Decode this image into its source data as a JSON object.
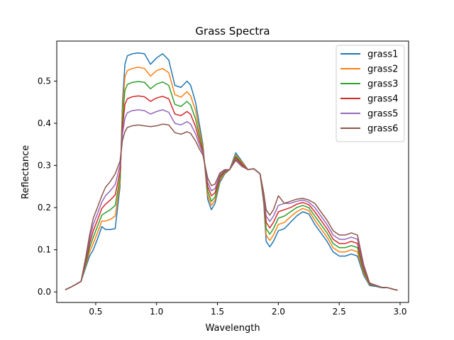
{
  "chart_data": {
    "type": "line",
    "title": "Grass Spectra",
    "xlabel": "Wavelength",
    "ylabel": "Reflectance",
    "xlim": [
      0.18,
      3.07
    ],
    "ylim": [
      -0.025,
      0.595
    ],
    "xticks": [
      0.5,
      1.0,
      1.5,
      2.0,
      2.5,
      3.0
    ],
    "xtick_labels": [
      "0.5",
      "1.0",
      "1.5",
      "2.0",
      "2.5",
      "3.0"
    ],
    "yticks": [
      0.0,
      0.1,
      0.2,
      0.3,
      0.4,
      0.5
    ],
    "ytick_labels": [
      "0.0",
      "0.1",
      "0.2",
      "0.3",
      "0.4",
      "0.5"
    ],
    "grid": false,
    "legend_position": "upper right",
    "series": [
      {
        "name": "grass1",
        "color": "#1f77b4",
        "x": [
          0.25,
          0.3,
          0.35,
          0.38,
          0.42,
          0.45,
          0.48,
          0.52,
          0.55,
          0.58,
          0.62,
          0.66,
          0.7,
          0.72,
          0.74,
          0.76,
          0.8,
          0.85,
          0.9,
          0.95,
          1.0,
          1.05,
          1.1,
          1.15,
          1.2,
          1.25,
          1.28,
          1.32,
          1.35,
          1.38,
          1.42,
          1.45,
          1.48,
          1.52,
          1.56,
          1.6,
          1.65,
          1.7,
          1.75,
          1.8,
          1.85,
          1.88,
          1.9,
          1.93,
          1.96,
          2.0,
          2.05,
          2.1,
          2.15,
          2.2,
          2.25,
          2.3,
          2.35,
          2.4,
          2.45,
          2.5,
          2.55,
          2.6,
          2.65,
          2.7,
          2.75,
          2.8,
          2.85,
          2.9,
          2.95,
          2.98
        ],
        "y": [
          0.005,
          0.012,
          0.02,
          0.025,
          0.06,
          0.085,
          0.1,
          0.13,
          0.155,
          0.148,
          0.148,
          0.15,
          0.25,
          0.45,
          0.54,
          0.56,
          0.565,
          0.567,
          0.565,
          0.54,
          0.555,
          0.565,
          0.55,
          0.49,
          0.485,
          0.5,
          0.49,
          0.45,
          0.4,
          0.35,
          0.22,
          0.195,
          0.21,
          0.26,
          0.28,
          0.29,
          0.33,
          0.31,
          0.29,
          0.292,
          0.28,
          0.21,
          0.12,
          0.107,
          0.12,
          0.145,
          0.15,
          0.165,
          0.18,
          0.19,
          0.185,
          0.16,
          0.14,
          0.12,
          0.095,
          0.085,
          0.085,
          0.09,
          0.085,
          0.04,
          0.015,
          0.013,
          0.01,
          0.01,
          0.006,
          0.004
        ]
      },
      {
        "name": "grass2",
        "color": "#ff7f0e",
        "x": [
          0.25,
          0.3,
          0.35,
          0.38,
          0.42,
          0.45,
          0.48,
          0.52,
          0.55,
          0.58,
          0.62,
          0.66,
          0.7,
          0.72,
          0.74,
          0.76,
          0.8,
          0.85,
          0.9,
          0.95,
          1.0,
          1.05,
          1.1,
          1.15,
          1.2,
          1.25,
          1.28,
          1.32,
          1.35,
          1.38,
          1.42,
          1.45,
          1.48,
          1.52,
          1.56,
          1.6,
          1.65,
          1.7,
          1.75,
          1.8,
          1.85,
          1.88,
          1.9,
          1.93,
          1.96,
          2.0,
          2.05,
          2.1,
          2.15,
          2.2,
          2.25,
          2.3,
          2.35,
          2.4,
          2.45,
          2.5,
          2.55,
          2.6,
          2.65,
          2.7,
          2.75,
          2.8,
          2.85,
          2.9,
          2.95,
          2.98
        ],
        "y": [
          0.005,
          0.012,
          0.02,
          0.025,
          0.065,
          0.095,
          0.115,
          0.145,
          0.168,
          0.168,
          0.172,
          0.18,
          0.26,
          0.43,
          0.51,
          0.525,
          0.53,
          0.533,
          0.53,
          0.512,
          0.525,
          0.53,
          0.52,
          0.468,
          0.462,
          0.475,
          0.465,
          0.43,
          0.385,
          0.345,
          0.23,
          0.205,
          0.218,
          0.265,
          0.282,
          0.29,
          0.325,
          0.308,
          0.29,
          0.292,
          0.28,
          0.215,
          0.135,
          0.122,
          0.135,
          0.16,
          0.165,
          0.178,
          0.19,
          0.198,
          0.193,
          0.17,
          0.15,
          0.13,
          0.105,
          0.095,
          0.095,
          0.1,
          0.095,
          0.045,
          0.017,
          0.014,
          0.011,
          0.01,
          0.006,
          0.004
        ]
      },
      {
        "name": "grass3",
        "color": "#2ca02c",
        "x": [
          0.25,
          0.3,
          0.35,
          0.38,
          0.42,
          0.45,
          0.48,
          0.52,
          0.55,
          0.58,
          0.62,
          0.66,
          0.7,
          0.72,
          0.74,
          0.76,
          0.8,
          0.85,
          0.9,
          0.95,
          1.0,
          1.05,
          1.1,
          1.15,
          1.2,
          1.25,
          1.28,
          1.32,
          1.35,
          1.38,
          1.42,
          1.45,
          1.48,
          1.52,
          1.56,
          1.6,
          1.65,
          1.7,
          1.75,
          1.8,
          1.85,
          1.88,
          1.9,
          1.93,
          1.96,
          2.0,
          2.05,
          2.1,
          2.15,
          2.2,
          2.25,
          2.3,
          2.35,
          2.4,
          2.45,
          2.5,
          2.55,
          2.6,
          2.65,
          2.7,
          2.75,
          2.8,
          2.85,
          2.9,
          2.95,
          2.98
        ],
        "y": [
          0.005,
          0.012,
          0.02,
          0.025,
          0.07,
          0.105,
          0.13,
          0.16,
          0.182,
          0.188,
          0.195,
          0.205,
          0.27,
          0.41,
          0.478,
          0.492,
          0.497,
          0.499,
          0.497,
          0.482,
          0.493,
          0.498,
          0.49,
          0.445,
          0.44,
          0.452,
          0.443,
          0.41,
          0.372,
          0.34,
          0.24,
          0.215,
          0.225,
          0.27,
          0.284,
          0.29,
          0.322,
          0.305,
          0.29,
          0.292,
          0.28,
          0.22,
          0.15,
          0.137,
          0.15,
          0.175,
          0.18,
          0.19,
          0.2,
          0.205,
          0.2,
          0.18,
          0.16,
          0.14,
          0.115,
          0.105,
          0.105,
          0.11,
          0.105,
          0.05,
          0.018,
          0.014,
          0.011,
          0.01,
          0.006,
          0.004
        ]
      },
      {
        "name": "grass4",
        "color": "#d62728",
        "x": [
          0.25,
          0.3,
          0.35,
          0.38,
          0.42,
          0.45,
          0.48,
          0.52,
          0.55,
          0.58,
          0.62,
          0.66,
          0.7,
          0.72,
          0.74,
          0.76,
          0.8,
          0.85,
          0.9,
          0.95,
          1.0,
          1.05,
          1.1,
          1.15,
          1.2,
          1.25,
          1.28,
          1.32,
          1.35,
          1.38,
          1.42,
          1.45,
          1.48,
          1.52,
          1.56,
          1.6,
          1.65,
          1.7,
          1.75,
          1.8,
          1.85,
          1.88,
          1.9,
          1.93,
          1.96,
          2.0,
          2.05,
          2.1,
          2.15,
          2.2,
          2.25,
          2.3,
          2.35,
          2.4,
          2.45,
          2.5,
          2.55,
          2.6,
          2.65,
          2.7,
          2.75,
          2.8,
          2.85,
          2.9,
          2.95,
          2.98
        ],
        "y": [
          0.005,
          0.012,
          0.02,
          0.025,
          0.075,
          0.115,
          0.145,
          0.175,
          0.198,
          0.208,
          0.218,
          0.23,
          0.285,
          0.39,
          0.445,
          0.458,
          0.463,
          0.465,
          0.463,
          0.452,
          0.46,
          0.464,
          0.458,
          0.422,
          0.418,
          0.428,
          0.421,
          0.392,
          0.36,
          0.335,
          0.25,
          0.228,
          0.235,
          0.274,
          0.286,
          0.29,
          0.318,
          0.303,
          0.29,
          0.292,
          0.28,
          0.225,
          0.165,
          0.152,
          0.165,
          0.19,
          0.195,
          0.2,
          0.208,
          0.212,
          0.207,
          0.19,
          0.17,
          0.15,
          0.125,
          0.115,
          0.115,
          0.12,
          0.115,
          0.055,
          0.019,
          0.015,
          0.011,
          0.01,
          0.006,
          0.004
        ]
      },
      {
        "name": "grass5",
        "color": "#9467bd",
        "x": [
          0.25,
          0.3,
          0.35,
          0.38,
          0.42,
          0.45,
          0.48,
          0.52,
          0.55,
          0.58,
          0.62,
          0.66,
          0.7,
          0.72,
          0.74,
          0.76,
          0.8,
          0.85,
          0.9,
          0.95,
          1.0,
          1.05,
          1.1,
          1.15,
          1.2,
          1.25,
          1.28,
          1.32,
          1.35,
          1.38,
          1.42,
          1.45,
          1.48,
          1.52,
          1.56,
          1.6,
          1.65,
          1.7,
          1.75,
          1.8,
          1.85,
          1.88,
          1.9,
          1.93,
          1.96,
          2.0,
          2.05,
          2.1,
          2.15,
          2.2,
          2.25,
          2.3,
          2.35,
          2.4,
          2.45,
          2.5,
          2.55,
          2.6,
          2.65,
          2.7,
          2.75,
          2.8,
          2.85,
          2.9,
          2.95,
          2.98
        ],
        "y": [
          0.005,
          0.012,
          0.02,
          0.025,
          0.08,
          0.125,
          0.16,
          0.19,
          0.213,
          0.228,
          0.24,
          0.255,
          0.3,
          0.375,
          0.412,
          0.425,
          0.43,
          0.432,
          0.43,
          0.422,
          0.428,
          0.432,
          0.426,
          0.4,
          0.396,
          0.404,
          0.398,
          0.375,
          0.35,
          0.33,
          0.26,
          0.24,
          0.245,
          0.278,
          0.288,
          0.29,
          0.315,
          0.3,
          0.29,
          0.292,
          0.28,
          0.23,
          0.18,
          0.167,
          0.18,
          0.205,
          0.21,
          0.21,
          0.215,
          0.218,
          0.213,
          0.2,
          0.18,
          0.16,
          0.135,
          0.125,
          0.125,
          0.13,
          0.125,
          0.06,
          0.02,
          0.015,
          0.011,
          0.01,
          0.006,
          0.004
        ]
      },
      {
        "name": "grass6",
        "color": "#8c564b",
        "x": [
          0.25,
          0.3,
          0.35,
          0.38,
          0.42,
          0.45,
          0.48,
          0.52,
          0.55,
          0.58,
          0.62,
          0.66,
          0.7,
          0.72,
          0.74,
          0.76,
          0.8,
          0.85,
          0.9,
          0.95,
          1.0,
          1.05,
          1.1,
          1.15,
          1.2,
          1.25,
          1.28,
          1.32,
          1.35,
          1.38,
          1.42,
          1.45,
          1.48,
          1.52,
          1.56,
          1.6,
          1.65,
          1.7,
          1.75,
          1.8,
          1.85,
          1.88,
          1.9,
          1.93,
          1.96,
          2.0,
          2.05,
          2.1,
          2.15,
          2.2,
          2.25,
          2.3,
          2.35,
          2.4,
          2.45,
          2.5,
          2.55,
          2.6,
          2.65,
          2.7,
          2.75,
          2.8,
          2.85,
          2.9,
          2.95,
          2.98
        ],
        "y": [
          0.005,
          0.012,
          0.02,
          0.025,
          0.085,
          0.135,
          0.175,
          0.205,
          0.228,
          0.248,
          0.262,
          0.28,
          0.31,
          0.36,
          0.38,
          0.39,
          0.394,
          0.396,
          0.394,
          0.392,
          0.394,
          0.398,
          0.396,
          0.378,
          0.374,
          0.38,
          0.376,
          0.358,
          0.34,
          0.325,
          0.27,
          0.252,
          0.256,
          0.282,
          0.29,
          0.29,
          0.312,
          0.298,
          0.29,
          0.292,
          0.28,
          0.235,
          0.195,
          0.182,
          0.195,
          0.228,
          0.21,
          0.215,
          0.22,
          0.222,
          0.218,
          0.21,
          0.19,
          0.17,
          0.145,
          0.135,
          0.135,
          0.14,
          0.135,
          0.065,
          0.021,
          0.016,
          0.011,
          0.01,
          0.006,
          0.004
        ]
      }
    ]
  }
}
